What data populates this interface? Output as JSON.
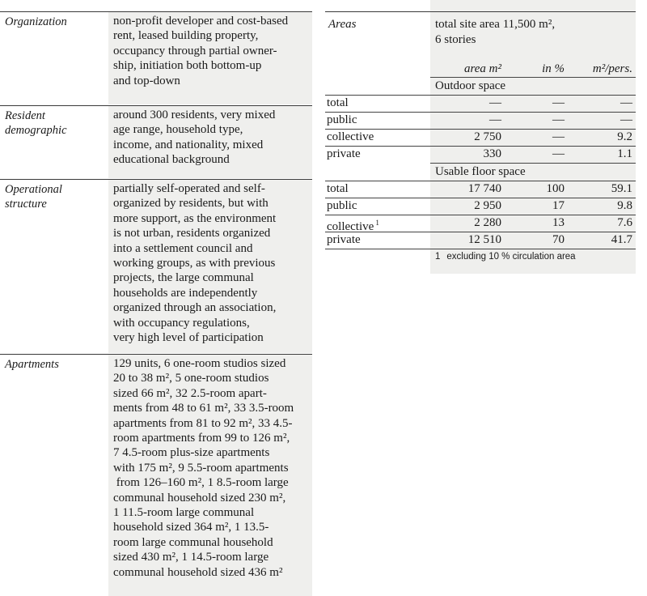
{
  "left_rows": [
    {
      "label_lines": [
        "Organization"
      ],
      "value_lines": [
        "non-profit developer and cost-based",
        "rent, leased building property,",
        "occupancy through partial owner-",
        "ship, initiation both bottom-up",
        "and top-down"
      ]
    },
    {
      "label_lines": [
        "Resident",
        "demographic"
      ],
      "value_lines": [
        "around 300 residents, very mixed",
        "age range, household type,",
        "income, and nationality, mixed",
        "educational background"
      ]
    },
    {
      "label_lines": [
        "Operational",
        "structure"
      ],
      "value_lines": [
        "partially self-operated and self-",
        "organized by residents, but with",
        "more support, as the environment",
        "is not urban, residents organized",
        "into a settlement council and",
        "working groups, as with previous",
        "projects, the large communal",
        "households are independently",
        "organized through an association,",
        "with occupancy regulations,",
        "very high level of participation"
      ]
    },
    {
      "label_lines": [
        "Apartments"
      ],
      "value_lines": [
        "129 units, 6 one-room studios sized",
        "20 to 38 m², 5 one-room studios",
        "sized 66 m², 32 2.5-room apart-",
        "ments from 48 to 61 m², 33 3.5-room",
        "apartments from 81 to 92 m², 33 4.5-",
        "room apartments from 99 to 126 m²,",
        "7 4.5-room plus-size apartments",
        "with 175 m², 9 5.5-room apartments",
        " from 126–160 m², 1 8.5-room large",
        "communal household sized 230 m²,",
        "1 11.5-room large communal",
        "household sized 364 m², 1 13.5-",
        "room large communal household",
        "sized 430 m², 1 14.5-room large",
        "communal household sized 436 m²"
      ]
    }
  ],
  "areas": {
    "label": "Areas",
    "site_lines": [
      "total site area 11,500 m²,",
      "6 stories"
    ],
    "headers": [
      "area m²",
      "in %",
      "m²/pers."
    ],
    "sections": [
      {
        "title": "Outdoor space",
        "rows": [
          {
            "name": "total",
            "area": "—",
            "pct": "—",
            "per": "—"
          },
          {
            "name": "public",
            "area": "—",
            "pct": "—",
            "per": "—"
          },
          {
            "name": "collective",
            "area": "2 750",
            "pct": "—",
            "per": "9.2"
          },
          {
            "name": "private",
            "area": "330",
            "pct": "—",
            "per": "1.1"
          }
        ]
      },
      {
        "title": "Usable floor space",
        "rows": [
          {
            "name": "total",
            "area": "17 740",
            "pct": "100",
            "per": "59.1"
          },
          {
            "name": "public",
            "area": "2 950",
            "pct": "17",
            "per": "9.8"
          },
          {
            "name": "collective",
            "sup": "1",
            "area": "2 280",
            "pct": "13",
            "per": "7.6"
          },
          {
            "name": "private",
            "area": "12 510",
            "pct": "70",
            "per": "41.7"
          }
        ]
      }
    ],
    "footnote": {
      "mark": "1",
      "text": "excluding 10 % circulation area"
    }
  }
}
